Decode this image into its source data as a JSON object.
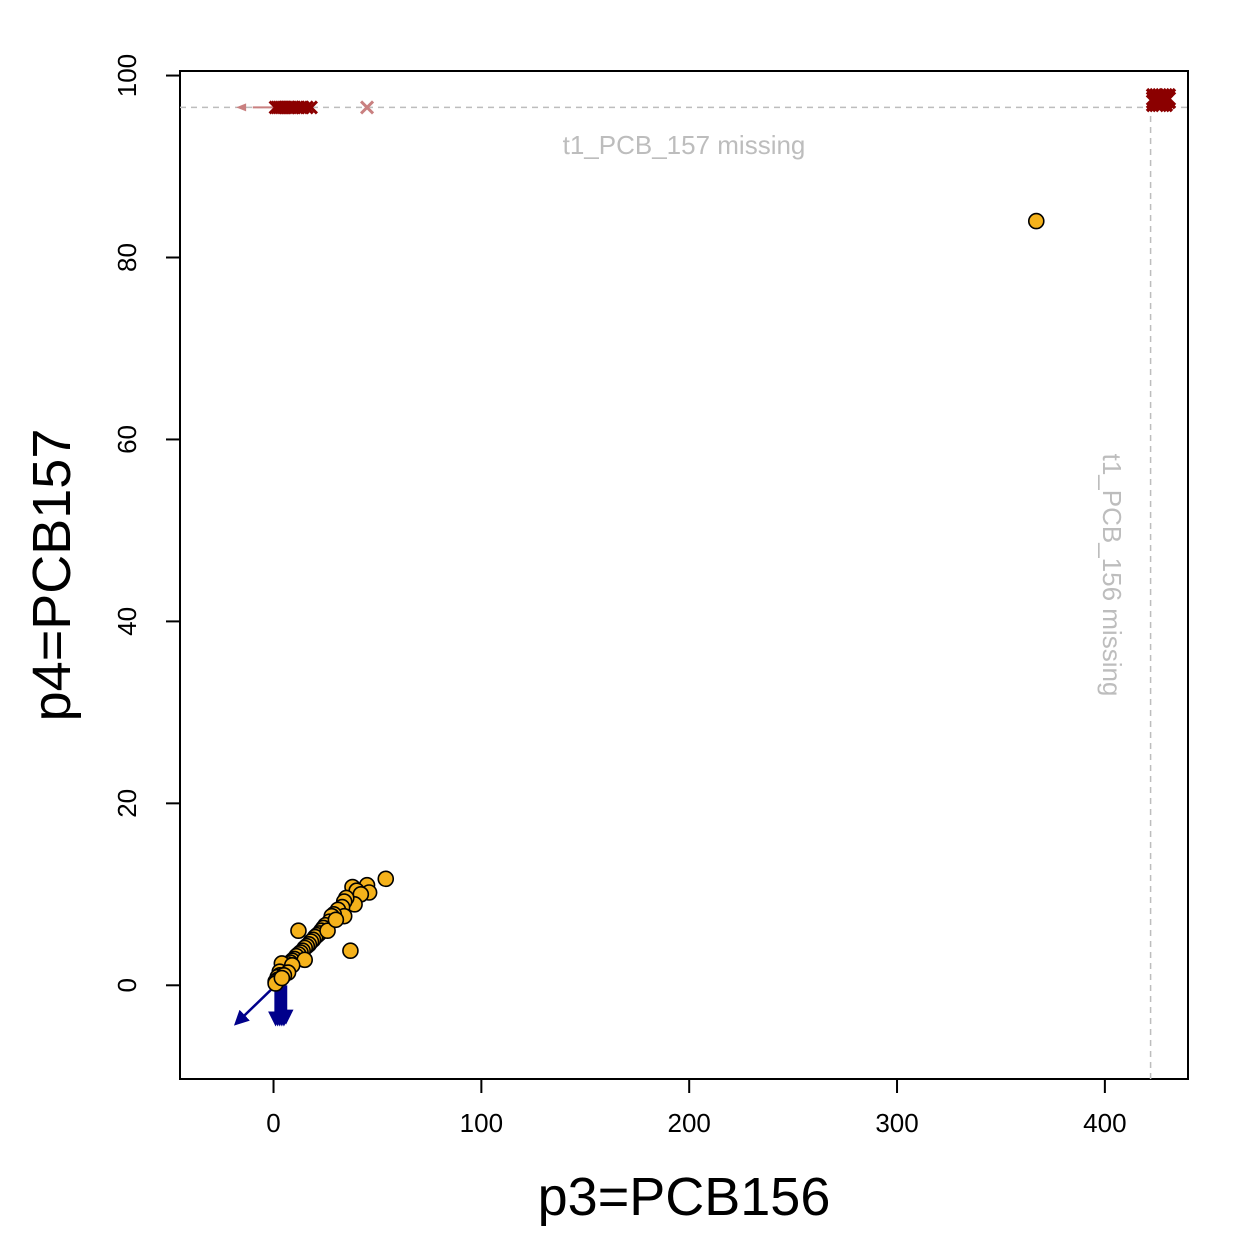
{
  "chart_data": {
    "type": "scatter",
    "xlabel": "p3=PCB156",
    "ylabel": "p4=PCB157",
    "xlim": [
      -45,
      440
    ],
    "ylim": [
      -10.3,
      100.5
    ],
    "x_ticks": [
      0,
      100,
      200,
      300,
      400
    ],
    "y_ticks": [
      0,
      20,
      40,
      60,
      80,
      100
    ],
    "grid": false,
    "colors": {
      "point_fill": "#f5b21b",
      "point_stroke": "#000000",
      "missing_marker": "#8b0000",
      "missing_marker_light": "#c98080",
      "below_limit_arrow": "#00008b",
      "missing_line": "#bdbdbd"
    },
    "missing": {
      "y_missing_label": "t1_PCB_157 missing",
      "y_missing_at": 96.5,
      "x_missing_label": "t1_PCB_156 missing",
      "x_missing_at": 422
    },
    "points": [
      [
        54,
        11.7
      ],
      [
        45,
        11.0
      ],
      [
        46,
        10.2
      ],
      [
        38,
        10.8
      ],
      [
        40,
        10.4
      ],
      [
        42,
        10.0
      ],
      [
        39,
        8.9
      ],
      [
        35,
        9.6
      ],
      [
        34,
        9.2
      ],
      [
        33,
        8.6
      ],
      [
        31,
        8.3
      ],
      [
        34,
        7.6
      ],
      [
        29,
        7.8
      ],
      [
        28,
        7.6
      ],
      [
        27,
        7.0
      ],
      [
        25,
        6.6
      ],
      [
        24,
        6.3
      ],
      [
        23,
        6.0
      ],
      [
        22,
        5.7
      ],
      [
        21,
        5.5
      ],
      [
        20,
        5.3
      ],
      [
        19,
        5.0
      ],
      [
        18,
        4.8
      ],
      [
        17,
        4.5
      ],
      [
        16,
        4.3
      ],
      [
        15,
        4.1
      ],
      [
        14,
        3.8
      ],
      [
        13,
        3.6
      ],
      [
        12,
        3.4
      ],
      [
        11,
        3.2
      ],
      [
        10,
        2.9
      ],
      [
        9,
        2.7
      ],
      [
        8,
        2.5
      ],
      [
        7,
        2.3
      ],
      [
        6,
        2.1
      ],
      [
        5,
        1.9
      ],
      [
        4,
        1.7
      ],
      [
        4,
        2.4
      ],
      [
        3,
        1.5
      ],
      [
        3,
        1.1
      ],
      [
        2,
        0.9
      ],
      [
        2,
        0.6
      ],
      [
        1,
        0.4
      ],
      [
        1,
        0.2
      ],
      [
        12,
        6.0
      ],
      [
        37,
        3.8
      ],
      [
        15,
        2.8
      ],
      [
        9,
        2.2
      ],
      [
        7,
        1.4
      ],
      [
        5,
        1.1
      ],
      [
        4,
        0.8
      ],
      [
        26,
        6.0
      ],
      [
        30,
        7.2
      ],
      [
        367,
        84
      ]
    ],
    "y_missing_x": [
      1,
      2,
      3,
      4,
      5,
      6,
      7,
      8,
      9,
      10,
      12,
      14,
      16,
      18,
      45
    ],
    "x_missing_cluster": [
      427,
      97.3
    ],
    "below_limit_arrows": [
      [
        1,
        0,
        -18,
        -4.2
      ],
      [
        1,
        0,
        1,
        -4.2
      ],
      [
        2,
        0,
        2,
        -4.2
      ],
      [
        3,
        0,
        3,
        -4.2
      ],
      [
        4,
        0,
        4,
        -4.2
      ],
      [
        5,
        0,
        5,
        -4.2
      ],
      [
        6,
        0,
        6,
        -4.0
      ]
    ]
  }
}
